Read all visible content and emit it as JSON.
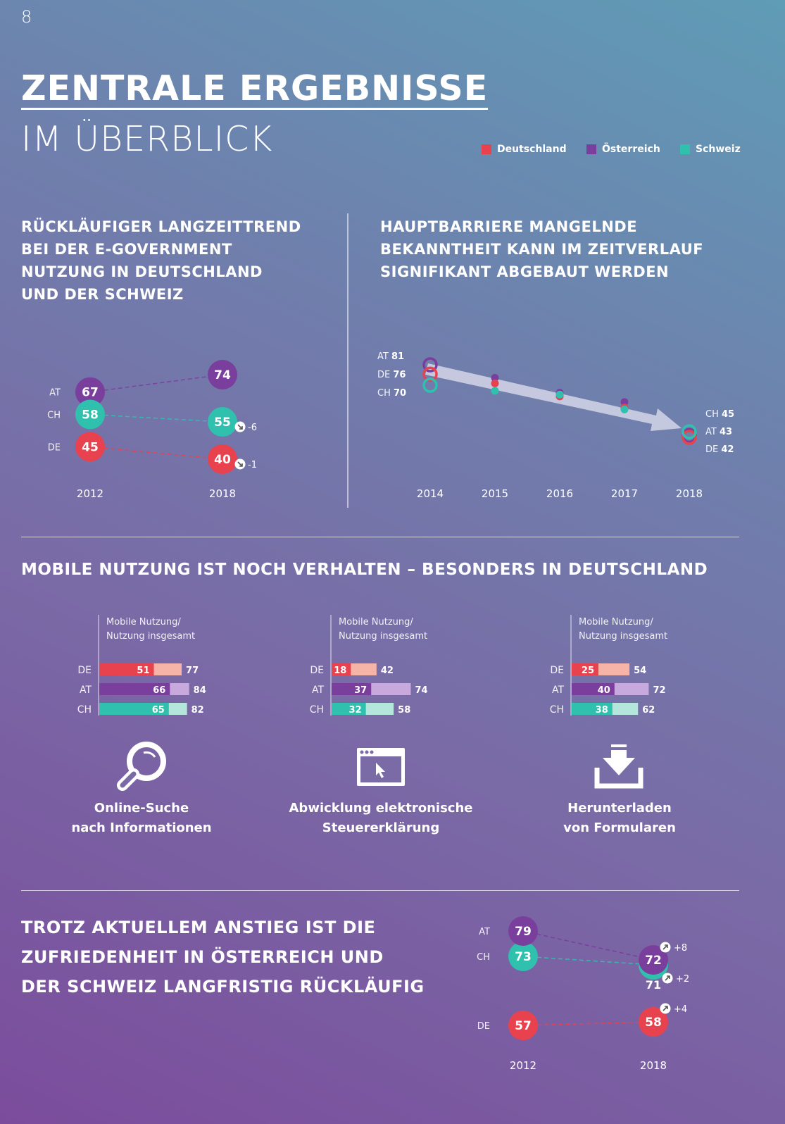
{
  "page_number": "8",
  "title": {
    "line1": "ZENTRALE ERGEBNISSE",
    "line2": "IM ÜBERBLICK"
  },
  "legend": [
    {
      "label": "Deutschland",
      "color": "#e8424f"
    },
    {
      "label": "Österreich",
      "color": "#7a3e9d"
    },
    {
      "label": "Schweiz",
      "color": "#2fc0ae"
    }
  ],
  "colors": {
    "DE": "#e8424f",
    "AT": "#7a3e9d",
    "CH": "#2fc0ae",
    "DE_light": "#f6b3a8",
    "AT_light": "#c8a9de",
    "CH_light": "#b5e6dc"
  },
  "section1": {
    "heading": [
      "RÜCKLÄUFIGER LANGZEITTREND",
      "BEI DER E-GOVERNMENT",
      "NUTZUNG IN DEUTSCHLAND",
      "UND DER SCHWEIZ"
    ]
  },
  "section2": {
    "heading": [
      "HAUPTBARRIERE MANGELNDE",
      "BEKANNTHEIT KANN IM ZEITVERLAUF",
      "SIGNIFIKANT ABGEBAUT WERDEN"
    ]
  },
  "section3": {
    "heading": "MOBILE NUTZUNG IST NOCH VERHALTEN – BESONDERS IN DEUTSCHLAND"
  },
  "section4": {
    "heading": [
      "TROTZ AKTUELLEM ANSTIEG IST DIE",
      "ZUFRIEDENHEIT IN ÖSTERREICH UND",
      "DER SCHWEIZ LANGFRISTIG RÜCKLÄUFIG"
    ]
  },
  "chart_data": [
    {
      "id": "usage-slope",
      "type": "line",
      "title": "RÜCKLÄUFIGER LANGZEITTREND BEI DER E-GOVERNMENT NUTZUNG IN DEUTSCHLAND UND DER SCHWEIZ",
      "x": [
        "2012",
        "2018"
      ],
      "ylim": [
        35,
        80
      ],
      "series": [
        {
          "name": "AT",
          "values": [
            67,
            74
          ],
          "change": ""
        },
        {
          "name": "CH",
          "values": [
            58,
            55
          ],
          "change": "-6",
          "direction": "down"
        },
        {
          "name": "DE",
          "values": [
            45,
            40
          ],
          "change": "-1",
          "direction": "down"
        }
      ]
    },
    {
      "id": "awareness-barrier",
      "type": "scatter",
      "title": "HAUPTBARRIERE MANGELNDE BEKANNTHEIT KANN IM ZEITVERLAUF SIGNIFIKANT ABGEBAUT WERDEN",
      "x": [
        "2014",
        "2015",
        "2016",
        "2017",
        "2018"
      ],
      "ylim": [
        38,
        84
      ],
      "series": [
        {
          "name": "AT",
          "values": [
            81,
            74,
            66,
            61,
            43
          ]
        },
        {
          "name": "DE",
          "values": [
            76,
            71,
            64,
            58,
            42
          ]
        },
        {
          "name": "CH",
          "values": [
            70,
            67,
            65,
            57,
            45
          ]
        }
      ],
      "start_labels": [
        {
          "name": "AT",
          "value": "81"
        },
        {
          "name": "DE",
          "value": "76"
        },
        {
          "name": "CH",
          "value": "70"
        }
      ],
      "end_labels": [
        {
          "name": "CH",
          "value": "45"
        },
        {
          "name": "AT",
          "value": "43"
        },
        {
          "name": "DE",
          "value": "42"
        }
      ]
    },
    {
      "id": "mobile-online-search",
      "type": "bar",
      "title": "Mobile Nutzung/ Nutzung insgesamt",
      "caption": [
        "Online-Suche",
        "nach Informationen"
      ],
      "icon": "magnifier-icon",
      "categories": [
        "DE",
        "AT",
        "CH"
      ],
      "series": [
        {
          "name": "Mobile Nutzung",
          "values": [
            51,
            66,
            65
          ]
        },
        {
          "name": "Nutzung insgesamt",
          "values": [
            77,
            84,
            82
          ]
        }
      ]
    },
    {
      "id": "mobile-tax",
      "type": "bar",
      "title": "Mobile Nutzung/ Nutzung insgesamt",
      "caption": [
        "Abwicklung elektronische",
        "Steuererklärung"
      ],
      "icon": "browser-window-icon",
      "categories": [
        "DE",
        "AT",
        "CH"
      ],
      "series": [
        {
          "name": "Mobile Nutzung",
          "values": [
            18,
            37,
            32
          ]
        },
        {
          "name": "Nutzung insgesamt",
          "values": [
            42,
            74,
            58
          ]
        }
      ]
    },
    {
      "id": "mobile-forms",
      "type": "bar",
      "title": "Mobile Nutzung/ Nutzung insgesamt",
      "caption": [
        "Herunterladen",
        "von Formularen"
      ],
      "icon": "download-icon",
      "categories": [
        "DE",
        "AT",
        "CH"
      ],
      "series": [
        {
          "name": "Mobile Nutzung",
          "values": [
            25,
            40,
            38
          ]
        },
        {
          "name": "Nutzung insgesamt",
          "values": [
            54,
            72,
            62
          ]
        }
      ]
    },
    {
      "id": "satisfaction-slope",
      "type": "line",
      "title": "TROTZ AKTUELLEM ANSTIEG IST DIE ZUFRIEDENHEIT IN ÖSTERREICH UND DER SCHWEIZ LANGFRISTIG RÜCKLÄUFIG",
      "x": [
        "2012",
        "2018"
      ],
      "ylim": [
        55,
        82
      ],
      "series": [
        {
          "name": "AT",
          "values": [
            79,
            72
          ],
          "change": "+8",
          "direction": "up"
        },
        {
          "name": "CH",
          "values": [
            73,
            71
          ],
          "change": "+2",
          "direction": "up"
        },
        {
          "name": "DE",
          "values": [
            57,
            58
          ],
          "change": "+4",
          "direction": "up"
        }
      ]
    }
  ]
}
